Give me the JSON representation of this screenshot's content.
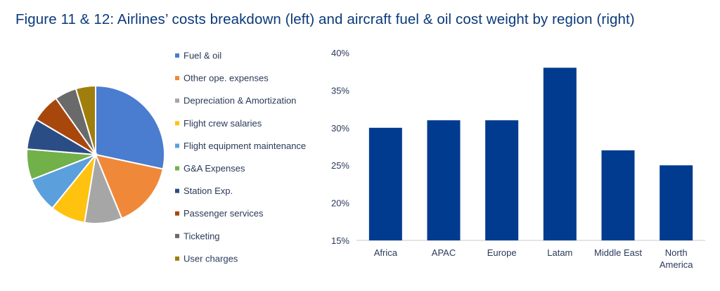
{
  "title": "Figure 11 & 12: Airlines’ costs breakdown (left) and aircraft fuel & oil cost weight by region (right)",
  "chart_data": [
    {
      "type": "pie",
      "title": "",
      "legend_position": "right",
      "slices": [
        {
          "label": "Fuel & oil",
          "value": 27.5,
          "color": "#4a7ccf"
        },
        {
          "label": "Other ope. expenses",
          "value": 15,
          "color": "#f0883a"
        },
        {
          "label": "Depreciation & Amortization",
          "value": 8.5,
          "color": "#a6a6a6"
        },
        {
          "label": "Flight crew salaries",
          "value": 8,
          "color": "#ffc20e"
        },
        {
          "label": "Flight equipment maintenance",
          "value": 8,
          "color": "#5b9fdc"
        },
        {
          "label": "G&A Expenses",
          "value": 7,
          "color": "#72b04a"
        },
        {
          "label": "Station Exp.",
          "value": 7,
          "color": "#2b4d86"
        },
        {
          "label": "Passenger services",
          "value": 6.5,
          "color": "#a8470c"
        },
        {
          "label": "Ticketing",
          "value": 5,
          "color": "#6a6a6a"
        },
        {
          "label": "User charges",
          "value": 4.5,
          "color": "#a07e0c"
        }
      ]
    },
    {
      "type": "bar",
      "title": "",
      "xlabel": "",
      "ylabel": "",
      "categories": [
        "Africa",
        "APAC",
        "Europe",
        "Latam",
        "Middle East",
        "North America"
      ],
      "category_lines": [
        [
          "Africa"
        ],
        [
          "APAC"
        ],
        [
          "Europe"
        ],
        [
          "Latam"
        ],
        [
          "Middle East"
        ],
        [
          "North",
          "America"
        ]
      ],
      "values": [
        30,
        31,
        31,
        38,
        27,
        25
      ],
      "ylim": [
        15,
        40
      ],
      "yticks": [
        15,
        20,
        25,
        30,
        35,
        40
      ],
      "ytick_labels": [
        "15%",
        "20%",
        "25%",
        "30%",
        "35%",
        "40%"
      ],
      "bar_color": "#003b8f",
      "grid": false
    }
  ]
}
